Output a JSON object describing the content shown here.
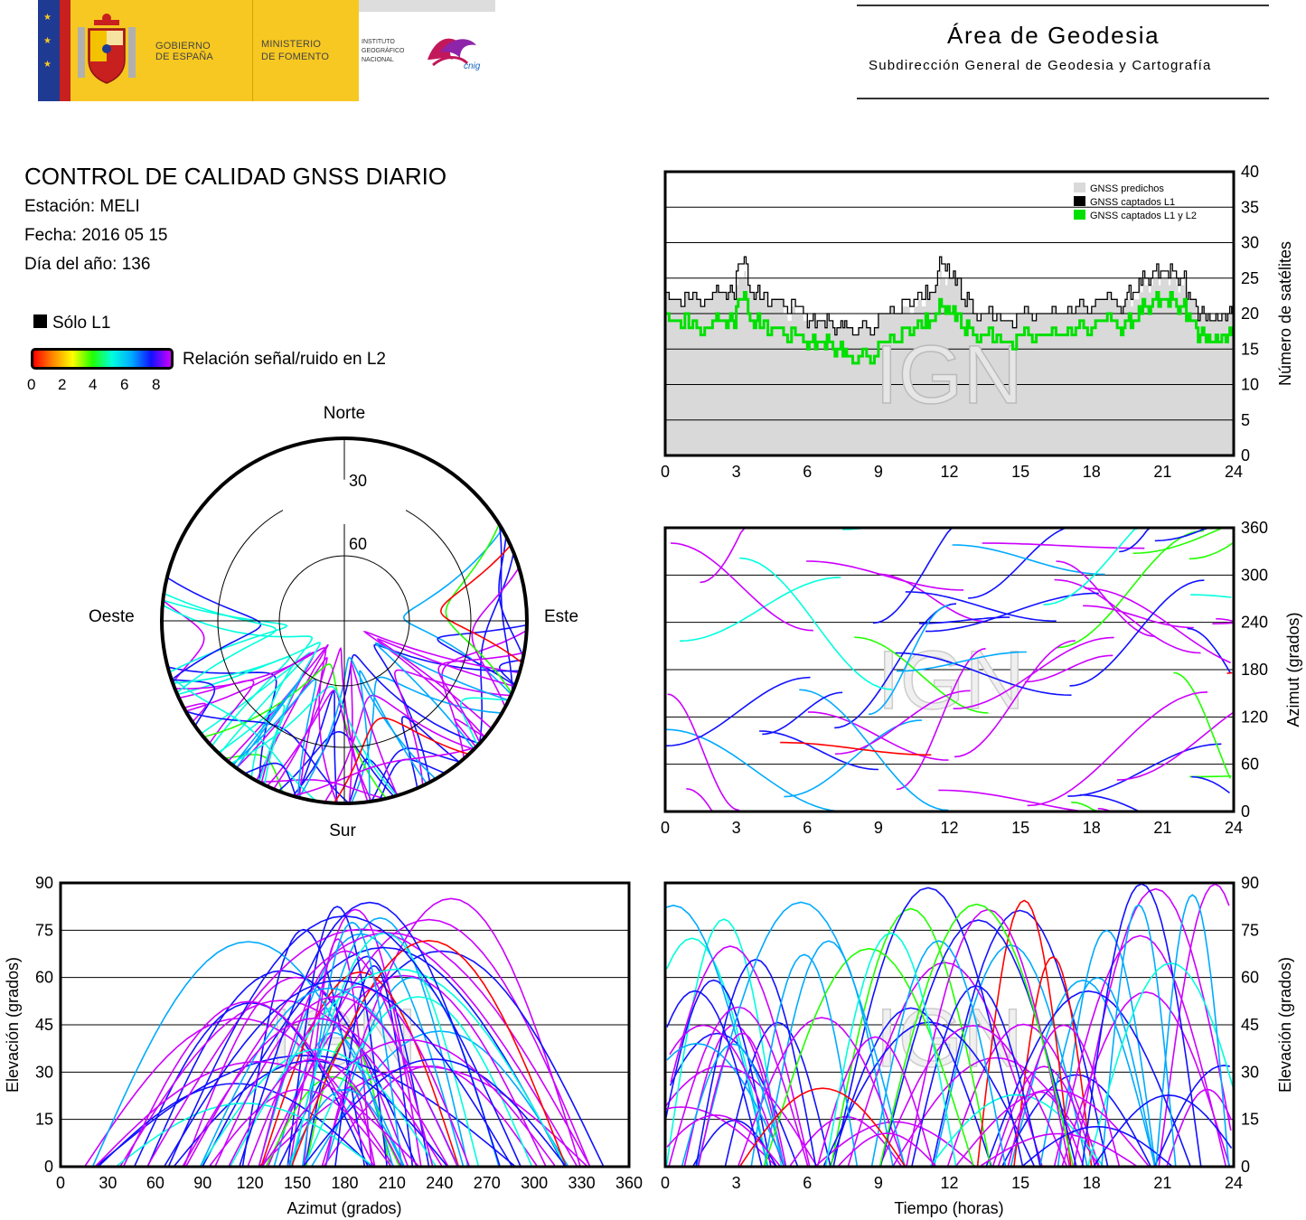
{
  "header": {
    "gov_line1": "GOBIERNO",
    "gov_line2": "DE ESPAÑA",
    "min_line1": "MINISTERIO",
    "min_line2": "DE FOMENTO",
    "inst_line1": "INSTITUTO",
    "inst_line2": "GEOGRÁFICO",
    "inst_line3": "NACIONAL",
    "cnig": "cnig",
    "area_title": "Área de Geodesia",
    "area_subtitle": "Subdirección General de Geodesia y Cartografía"
  },
  "info": {
    "title": "CONTROL DE CALIDAD GNSS DIARIO",
    "station": "Estación: MELI",
    "date": "Fecha: 2016 05 15",
    "doy": "Día del año: 136",
    "solo_l1": "Sólo L1",
    "snr_label": "Relación señal/ruido en L2",
    "snr_ticks": [
      "0",
      "2",
      "4",
      "6",
      "8"
    ]
  },
  "watermark": "IGN",
  "colors": {
    "predicted": "#d9d9d9",
    "l1": "#000000",
    "l1l2": "#00e000",
    "snr_scale": [
      "#ff0000",
      "#ff8800",
      "#ffff00",
      "#22ff00",
      "#00ffdd",
      "#00aaff",
      "#1111ff",
      "#cc00ff"
    ]
  },
  "chart_data": [
    {
      "type": "area",
      "id": "satellites",
      "ylabel": "Número de satélites",
      "xlim": [
        0,
        24
      ],
      "ylim": [
        0,
        40
      ],
      "xticks": [
        "0",
        "3",
        "6",
        "9",
        "12",
        "15",
        "18",
        "21",
        "24"
      ],
      "yticks": [
        "0",
        "5",
        "10",
        "15",
        "20",
        "25",
        "30",
        "35",
        "40"
      ],
      "grid": true,
      "legend_position": "top-right",
      "legend": [
        "GNSS predichos",
        "GNSS captados L1",
        "GNSS captados L1 y L2"
      ],
      "x": [
        0,
        1,
        2,
        2.5,
        3,
        3.5,
        4,
        5,
        6,
        6.5,
        7,
        7.5,
        8,
        9,
        10,
        11,
        11.5,
        12,
        12.5,
        13,
        14,
        15,
        16,
        17,
        18,
        19,
        19.5,
        20,
        20.5,
        21,
        21.5,
        22,
        22.5,
        23,
        23.5,
        24
      ],
      "series": [
        {
          "name": "GNSS predichos",
          "values": [
            22,
            22,
            23,
            23,
            25,
            23,
            22,
            20,
            19,
            19,
            18,
            18,
            18,
            20,
            21,
            23,
            25,
            25,
            22,
            20,
            19,
            20,
            20,
            21,
            22,
            21,
            22,
            24,
            25,
            25,
            24,
            22,
            20,
            19,
            20,
            21
          ]
        },
        {
          "name": "GNSS captados L1",
          "values": [
            22,
            22,
            23,
            23,
            27,
            23,
            22,
            21,
            19,
            19,
            18,
            18,
            18,
            20,
            22,
            23,
            27,
            25,
            22,
            20,
            19,
            20,
            20,
            21,
            22,
            21,
            23,
            25,
            26,
            26,
            25,
            22,
            20,
            19,
            20,
            21
          ]
        },
        {
          "name": "GNSS captados L1 y L2",
          "values": [
            19,
            18,
            19,
            19,
            22,
            19,
            18,
            17,
            16,
            16,
            15,
            14,
            14,
            16,
            18,
            19,
            21,
            20,
            18,
            17,
            16,
            17,
            17,
            18,
            19,
            18,
            19,
            21,
            22,
            22,
            21,
            19,
            17,
            16,
            17,
            18
          ]
        }
      ]
    },
    {
      "type": "scatter",
      "id": "skyplot",
      "radial_ticks": [
        "30",
        "60"
      ],
      "directions": {
        "north": "Norte",
        "south": "Sur",
        "east": "Este",
        "west": "Oeste"
      },
      "note": "polar sky plot of satellite tracks coloured by L2 SNR"
    },
    {
      "type": "scatter",
      "id": "azimuth_time",
      "ylabel": "Azimut (grados)",
      "xlim": [
        0,
        24
      ],
      "ylim": [
        0,
        360
      ],
      "xticks": [
        "0",
        "3",
        "6",
        "9",
        "12",
        "15",
        "18",
        "21",
        "24"
      ],
      "yticks": [
        "0",
        "60",
        "120",
        "180",
        "240",
        "300",
        "360"
      ],
      "grid": true
    },
    {
      "type": "scatter",
      "id": "elevation_azimuth",
      "xlabel": "Azimut (grados)",
      "ylabel": "Elevación (grados)",
      "xlim": [
        0,
        360
      ],
      "ylim": [
        0,
        90
      ],
      "xticks": [
        "0",
        "30",
        "60",
        "90",
        "120",
        "150",
        "180",
        "210",
        "240",
        "270",
        "300",
        "330",
        "360"
      ],
      "yticks": [
        "0",
        "15",
        "30",
        "45",
        "60",
        "75",
        "90"
      ],
      "grid": true
    },
    {
      "type": "scatter",
      "id": "elevation_time",
      "xlabel": "Tiempo (horas)",
      "ylabel": "Elevación (grados)",
      "xlim": [
        0,
        24
      ],
      "ylim": [
        0,
        90
      ],
      "xticks": [
        "0",
        "3",
        "6",
        "9",
        "12",
        "15",
        "18",
        "21",
        "24"
      ],
      "yticks": [
        "0",
        "15",
        "30",
        "45",
        "60",
        "75",
        "90"
      ],
      "grid": true
    }
  ]
}
